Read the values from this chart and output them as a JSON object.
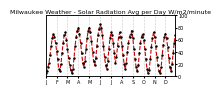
{
  "title": "Milwaukee Weather - Solar Radiation Avg per Day W/m2/minute",
  "bg_color": "#ffffff",
  "line_color": "#cc0000",
  "line_style": "--",
  "line_width": 0.8,
  "marker": ".",
  "marker_color": "#000000",
  "marker_size": 1.5,
  "grid_color": "#999999",
  "grid_style": ":",
  "ylim": [
    0,
    100
  ],
  "yticks": [
    0,
    20,
    40,
    60,
    80,
    100
  ],
  "values": [
    5,
    8,
    15,
    22,
    35,
    50,
    62,
    70,
    65,
    55,
    42,
    28,
    12,
    8,
    20,
    38,
    55,
    68,
    72,
    60,
    45,
    30,
    18,
    10,
    5,
    12,
    30,
    50,
    65,
    75,
    80,
    70,
    55,
    38,
    22,
    15,
    25,
    45,
    62,
    75,
    80,
    72,
    58,
    40,
    25,
    18,
    30,
    50,
    68,
    78,
    85,
    80,
    68,
    50,
    32,
    18,
    12,
    25,
    45,
    62,
    72,
    68,
    55,
    38,
    22,
    32,
    50,
    65,
    72,
    65,
    50,
    35,
    20,
    12,
    22,
    40,
    55,
    65,
    70,
    75,
    62,
    45,
    28,
    15,
    8,
    18,
    38,
    55,
    65,
    70,
    60,
    45,
    28,
    12,
    5,
    10,
    28,
    48,
    62,
    72,
    65,
    50,
    32,
    18,
    8,
    5,
    15,
    35,
    52,
    65,
    70,
    62,
    48,
    30,
    15,
    8,
    20,
    38,
    55,
    68
  ],
  "x_tick_positions": [
    0,
    10,
    20,
    30,
    40,
    50,
    60,
    70,
    80,
    90,
    100,
    110
  ],
  "x_tick_labels": [
    "J",
    "F",
    "M",
    "A",
    "M",
    "J",
    "J",
    "A",
    "S",
    "O",
    "N",
    "D"
  ],
  "vgrid_positions": [
    10,
    20,
    30,
    40,
    50,
    60,
    70,
    80,
    90,
    100,
    110
  ],
  "title_fontsize": 4.5,
  "tick_fontsize": 3.5,
  "right_ytick_labels": [
    "0",
    "20",
    "40",
    "60",
    "80",
    "100"
  ]
}
